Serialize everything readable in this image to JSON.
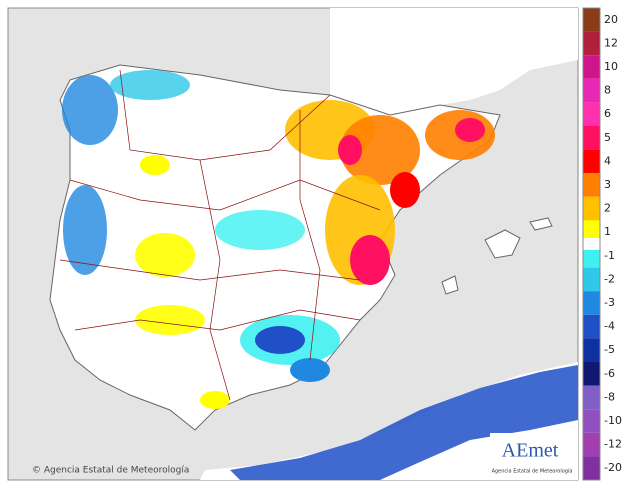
{
  "legend": {
    "items": [
      {
        "value": 20,
        "color": "#8b3a1a"
      },
      {
        "value": 12,
        "color": "#b0203c"
      },
      {
        "value": 10,
        "color": "#d0148c"
      },
      {
        "value": 8,
        "color": "#e828b4"
      },
      {
        "value": 6,
        "color": "#ff30b0"
      },
      {
        "value": 5,
        "color": "#ff1060"
      },
      {
        "value": 4,
        "color": "#ff0000"
      },
      {
        "value": 3,
        "color": "#ff8000"
      },
      {
        "value": 2,
        "color": "#ffc000"
      },
      {
        "value": 1,
        "color": "#ffff00"
      },
      {
        "value": -1,
        "color": "#40f0f0"
      },
      {
        "value": -2,
        "color": "#30c8e8"
      },
      {
        "value": -3,
        "color": "#2088e0"
      },
      {
        "value": -4,
        "color": "#2050c8"
      },
      {
        "value": -5,
        "color": "#1030a0"
      },
      {
        "value": -6,
        "color": "#101870"
      },
      {
        "value": -8,
        "color": "#8060c8"
      },
      {
        "value": -10,
        "color": "#9050c0"
      },
      {
        "value": -12,
        "color": "#a040b0"
      },
      {
        "value": -20,
        "color": "#8030a0"
      }
    ]
  },
  "footer": {
    "credit": "© Agencia Estatal de Meteorología"
  },
  "logo": {
    "name": "AEmet",
    "subtitle": "Agencia Estatal de Meteorología"
  }
}
